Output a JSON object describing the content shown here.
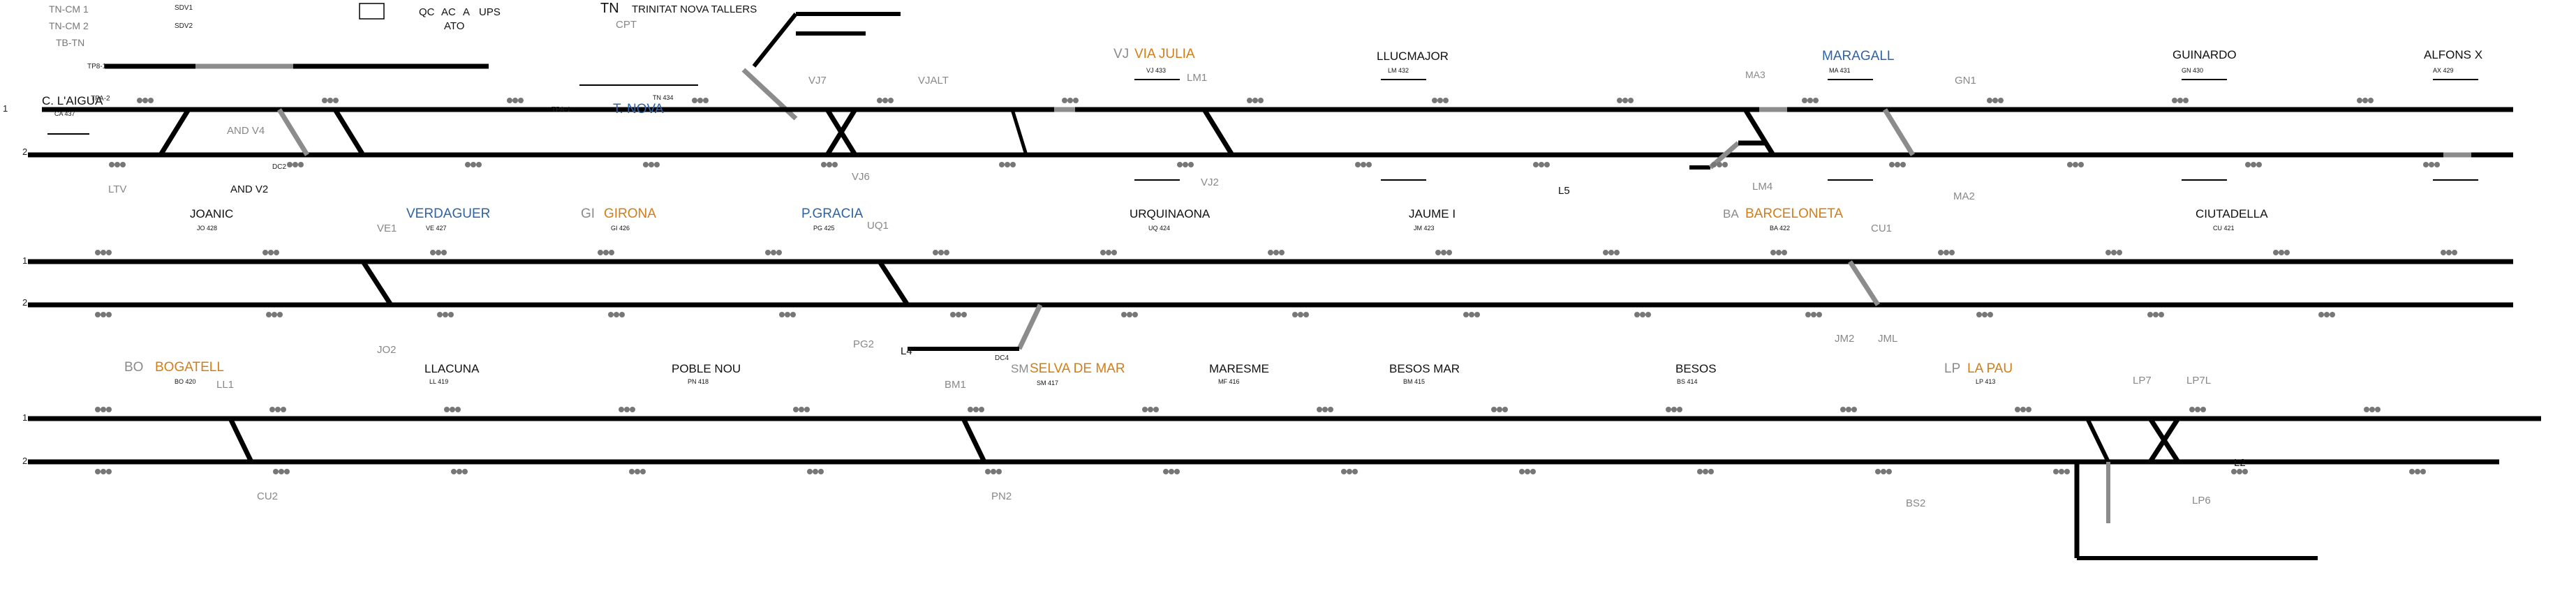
{
  "header": {
    "tn_labels": [
      "TN-CM 1",
      "TN-CM 2",
      "TB-TN"
    ],
    "sdv_labels": [
      "SDV1",
      "SDV2"
    ],
    "indicators": [
      "QC",
      "AC",
      "A",
      "UPS",
      "ATO"
    ],
    "depot_code": "TN",
    "depot_name": "TRINITAT NOVA TALLERS",
    "cpt": "CPT"
  },
  "rows": [
    {
      "track_labels": [
        "1",
        "2"
      ],
      "stations": [
        {
          "name": "C. L'AIGUA",
          "code": "CA 437"
        },
        {
          "name": "T. NOVA",
          "code": "TN 434"
        },
        {
          "name": "VIA JULIA",
          "code": "VJ 433",
          "abbr": "VJ"
        },
        {
          "name": "LLUCMAJOR",
          "code": "LM 432"
        },
        {
          "name": "MARAGALL",
          "code": "MA 431",
          "abbr": "MA3"
        },
        {
          "name": "GUINARDO",
          "code": "GN 430"
        },
        {
          "name": "ALFONS X",
          "code": "AX 429"
        }
      ],
      "markers": [
        "TPA-2",
        "TPA-1",
        "TP8-1",
        "AND V4",
        "LTV",
        "AND V2",
        "DC2",
        "VJ7",
        "VJALT",
        "VJ6",
        "VJ2",
        "LM1",
        "LM4",
        "GN1",
        "MA2",
        "L5"
      ]
    },
    {
      "track_labels": [
        "1",
        "2"
      ],
      "stations": [
        {
          "name": "JOANIC",
          "code": "JO 428"
        },
        {
          "name": "VERDAGUER",
          "code": "VE 427",
          "abbr": "VE1"
        },
        {
          "name": "GIRONA",
          "code": "GI 426",
          "abbr": "GI"
        },
        {
          "name": "P.GRACIA",
          "code": "PG 425"
        },
        {
          "name": "URQUINAONA",
          "code": "UQ 424"
        },
        {
          "name": "JAUME I",
          "code": "JM 423"
        },
        {
          "name": "BARCELONETA",
          "code": "BA 422",
          "abbr": "BA"
        },
        {
          "name": "CIUTADELLA",
          "code": "CU 421"
        }
      ],
      "markers": [
        "JO2",
        "UQ1",
        "PG2",
        "L4",
        "DC4",
        "CU1",
        "JM2",
        "JML"
      ]
    },
    {
      "track_labels": [
        "1",
        "2"
      ],
      "stations": [
        {
          "name": "BOGATELL",
          "code": "BO 420",
          "abbr": "BO"
        },
        {
          "name": "LLACUNA",
          "code": "LL 419"
        },
        {
          "name": "POBLE NOU",
          "code": "PN 418"
        },
        {
          "name": "SELVA DE MAR",
          "code": "SM 417",
          "abbr": "SM"
        },
        {
          "name": "MARESME",
          "code": "MF 416"
        },
        {
          "name": "BESOS MAR",
          "code": "BM 415"
        },
        {
          "name": "BESOS",
          "code": "BS 414"
        },
        {
          "name": "LA PAU",
          "code": "LP 413",
          "abbr": "LP"
        }
      ],
      "markers": [
        "LL1",
        "CU2",
        "BM1",
        "PN2",
        "BS2",
        "LP7",
        "LP7L",
        "LP6",
        "L2"
      ]
    }
  ],
  "colors": {
    "track": "#000000",
    "track_segment": "#8c8c8c",
    "station_blue": "#2b63a7",
    "station_orange": "#d27d16",
    "label_gray": "#888888",
    "signal": "#777777"
  }
}
